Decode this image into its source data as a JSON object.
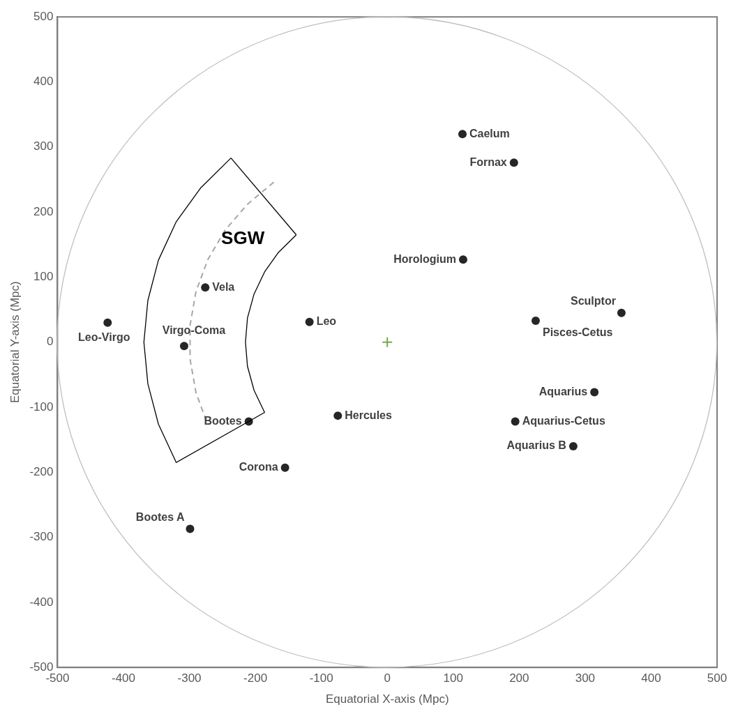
{
  "chart_data": {
    "type": "scatter",
    "xlabel": "Equatorial X-axis (Mpc)",
    "ylabel": "Equatorial Y-axis (Mpc)",
    "xlim": [
      -500,
      500
    ],
    "ylim": [
      -500,
      500
    ],
    "xticks": [
      -500,
      -400,
      -300,
      -200,
      -100,
      0,
      100,
      200,
      300,
      400,
      500
    ],
    "yticks": [
      -500,
      -400,
      -300,
      -200,
      -100,
      0,
      100,
      200,
      300,
      400,
      500
    ],
    "grid": false,
    "legend": false,
    "annotations": [
      "SGW"
    ],
    "series": [
      {
        "type": "line",
        "color": "#000000",
        "marker": "none",
        "line_style": "solid",
        "x": [
          -237,
          -283,
          -320,
          -347,
          -363,
          -369,
          -363,
          -347,
          -320,
          -186,
          -202,
          -212,
          -215,
          -212,
          -202,
          -186,
          -165,
          -138
        ],
        "values": [
          283,
          237,
          185,
          126,
          64,
          0,
          -64,
          -126,
          -185,
          -108,
          -74,
          -37,
          0,
          37,
          74,
          108,
          138,
          165
        ]
      },
      {
        "type": "line",
        "color": "#000000",
        "marker": "none",
        "line_style": "solid",
        "x": [
          -138,
          -237
        ],
        "values": [
          165,
          283
        ]
      },
      {
        "type": "line",
        "color": "#a6a6a6",
        "marker": "none",
        "line_style": "dashed",
        "x": [
          -172,
          -212,
          -246,
          -272,
          -290,
          -299,
          -299,
          -290,
          -272
        ],
        "values": [
          246,
          212,
          172,
          127,
          78,
          26,
          -26,
          -78,
          -127
        ]
      },
      {
        "name": "Caelum",
        "color": "#262626",
        "marker": "circle",
        "x": [
          114
        ],
        "values": [
          320
        ]
      },
      {
        "name": "Fornax",
        "color": "#262626",
        "marker": "circle",
        "x": [
          192
        ],
        "values": [
          276
        ]
      },
      {
        "name": "Horologium",
        "color": "#262626",
        "marker": "circle",
        "x": [
          115
        ],
        "values": [
          127
        ]
      },
      {
        "name": "Sculptor",
        "color": "#262626",
        "marker": "circle",
        "x": [
          355
        ],
        "values": [
          45
        ]
      },
      {
        "name": "Pisces-Cetus",
        "color": "#262626",
        "marker": "circle",
        "x": [
          225
        ],
        "values": [
          33
        ]
      },
      {
        "name": "Aquarius",
        "color": "#262626",
        "marker": "circle",
        "x": [
          314
        ],
        "values": [
          -77
        ]
      },
      {
        "name": "Aquarius-Cetus",
        "color": "#262626",
        "marker": "circle",
        "x": [
          194
        ],
        "values": [
          -122
        ]
      },
      {
        "name": "Aquarius B",
        "color": "#262626",
        "marker": "circle",
        "x": [
          282
        ],
        "values": [
          -160
        ]
      },
      {
        "name": "Leo",
        "color": "#262626",
        "marker": "circle",
        "x": [
          -118
        ],
        "values": [
          31
        ]
      },
      {
        "name": "Hercules",
        "color": "#262626",
        "marker": "circle",
        "x": [
          -75
        ],
        "values": [
          -113
        ]
      },
      {
        "name": "Corona",
        "color": "#262626",
        "marker": "circle",
        "x": [
          -155
        ],
        "values": [
          -193
        ]
      },
      {
        "name": "Bootes",
        "color": "#262626",
        "marker": "circle",
        "x": [
          -210
        ],
        "values": [
          -122
        ]
      },
      {
        "name": "Bootes A",
        "color": "#262626",
        "marker": "circle",
        "x": [
          -299
        ],
        "values": [
          -287
        ]
      },
      {
        "name": "Vela",
        "color": "#262626",
        "marker": "circle",
        "x": [
          -276
        ],
        "values": [
          84
        ]
      },
      {
        "name": "Virgo-Coma",
        "color": "#262626",
        "marker": "circle",
        "x": [
          -308
        ],
        "values": [
          -6
        ]
      },
      {
        "name": "Leo-Virgo",
        "color": "#262626",
        "marker": "circle",
        "x": [
          -424
        ],
        "values": [
          30
        ]
      },
      {
        "color": "#70ad47",
        "marker": "cross",
        "x": [
          0
        ],
        "values": [
          0
        ]
      }
    ]
  }
}
